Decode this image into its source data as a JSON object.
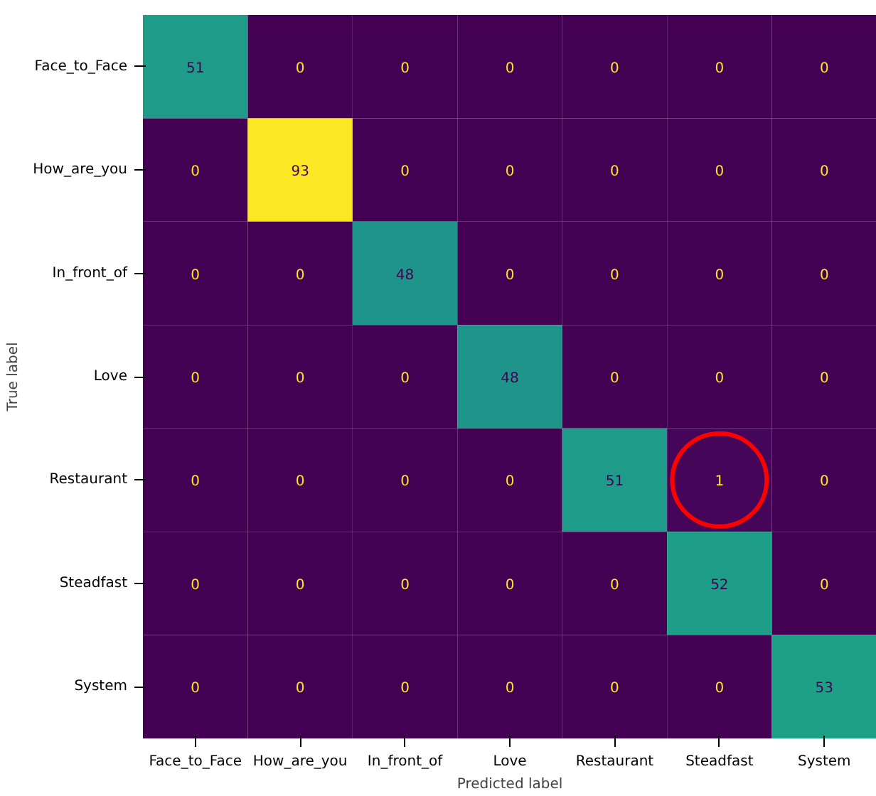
{
  "chart_data": {
    "type": "heatmap",
    "xlabel": "Predicted label",
    "ylabel": "True label",
    "categories": [
      "Face_to_Face",
      "How_are_you",
      "In_front_of",
      "Love",
      "Restaurant",
      "Steadfast",
      "System"
    ],
    "y_categories": [
      "Face_to_Face",
      "How_are_you",
      "In_front_of",
      "Love",
      "Restaurant",
      "Steadfast",
      "System"
    ],
    "cells": [
      [
        51,
        0,
        0,
        0,
        0,
        0,
        0
      ],
      [
        0,
        93,
        0,
        0,
        0,
        0,
        0
      ],
      [
        0,
        0,
        48,
        0,
        0,
        0,
        0
      ],
      [
        0,
        0,
        0,
        48,
        0,
        0,
        0
      ],
      [
        0,
        0,
        0,
        0,
        51,
        1,
        0
      ],
      [
        0,
        0,
        0,
        0,
        0,
        52,
        0
      ],
      [
        0,
        0,
        0,
        0,
        0,
        0,
        53
      ]
    ],
    "data_labels": true,
    "grid": false
  }
}
